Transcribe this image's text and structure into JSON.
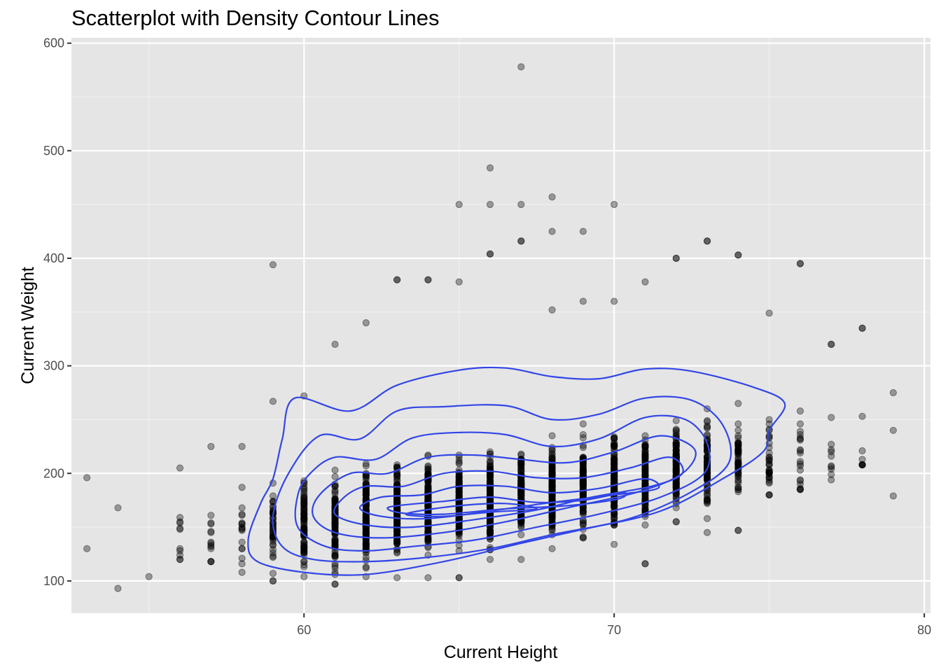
{
  "chart_data": {
    "type": "scatter",
    "title": "Scatterplot with Density Contour Lines",
    "xlabel": "Current Height",
    "ylabel": "Current Weight",
    "xlim": [
      52.5,
      80.2
    ],
    "ylim": [
      70,
      605
    ],
    "x_ticks": [
      60,
      70,
      80
    ],
    "y_ticks": [
      100,
      200,
      300,
      400,
      500,
      600
    ],
    "grid": true,
    "legend": "none",
    "point_color": "#000000",
    "point_opacity": 0.35,
    "contour_color": "#3246e6",
    "panel_background": "#e5e5e5",
    "outlier_points": [
      {
        "x": 53,
        "y": 196
      },
      {
        "x": 53,
        "y": 130
      },
      {
        "x": 54,
        "y": 168
      },
      {
        "x": 54,
        "y": 93
      },
      {
        "x": 55,
        "y": 104
      },
      {
        "x": 59,
        "y": 394
      },
      {
        "x": 67,
        "y": 578
      },
      {
        "x": 66,
        "y": 484
      },
      {
        "x": 65,
        "y": 450
      },
      {
        "x": 66,
        "y": 450
      },
      {
        "x": 67,
        "y": 450
      },
      {
        "x": 68,
        "y": 457
      },
      {
        "x": 70,
        "y": 450
      },
      {
        "x": 67,
        "y": 416
      },
      {
        "x": 68,
        "y": 425
      },
      {
        "x": 69,
        "y": 425
      },
      {
        "x": 73,
        "y": 416
      },
      {
        "x": 74,
        "y": 403
      },
      {
        "x": 72,
        "y": 400
      },
      {
        "x": 76,
        "y": 395
      },
      {
        "x": 66,
        "y": 404
      },
      {
        "x": 64,
        "y": 380
      },
      {
        "x": 63,
        "y": 380
      },
      {
        "x": 79,
        "y": 275
      },
      {
        "x": 79,
        "y": 240
      },
      {
        "x": 79,
        "y": 179
      },
      {
        "x": 78,
        "y": 335
      },
      {
        "x": 77,
        "y": 320
      },
      {
        "x": 71,
        "y": 116
      },
      {
        "x": 74,
        "y": 147
      },
      {
        "x": 61,
        "y": 97
      },
      {
        "x": 65,
        "y": 103
      }
    ],
    "columns": [
      {
        "x": 56,
        "ymin": 120,
        "ymax": 205,
        "n": 9
      },
      {
        "x": 57,
        "ymin": 118,
        "ymax": 225,
        "n": 12
      },
      {
        "x": 58,
        "ymin": 108,
        "ymax": 225,
        "n": 16
      },
      {
        "x": 59,
        "ymin": 100,
        "ymax": 267,
        "n": 45
      },
      {
        "x": 60,
        "ymin": 104,
        "ymax": 272,
        "n": 85
      },
      {
        "x": 61,
        "ymin": 97,
        "ymax": 320,
        "n": 110
      },
      {
        "x": 62,
        "ymin": 104,
        "ymax": 340,
        "n": 150
      },
      {
        "x": 63,
        "ymin": 103,
        "ymax": 380,
        "n": 170
      },
      {
        "x": 64,
        "ymin": 103,
        "ymax": 380,
        "n": 190
      },
      {
        "x": 65,
        "ymin": 103,
        "ymax": 378,
        "n": 140
      },
      {
        "x": 66,
        "ymin": 120,
        "ymax": 404,
        "n": 200
      },
      {
        "x": 67,
        "ymin": 120,
        "ymax": 416,
        "n": 140
      },
      {
        "x": 68,
        "ymin": 130,
        "ymax": 352,
        "n": 150
      },
      {
        "x": 69,
        "ymin": 140,
        "ymax": 360,
        "n": 120
      },
      {
        "x": 70,
        "ymin": 134,
        "ymax": 360,
        "n": 150
      },
      {
        "x": 71,
        "ymin": 116,
        "ymax": 378,
        "n": 110
      },
      {
        "x": 72,
        "ymin": 155,
        "ymax": 400,
        "n": 120
      },
      {
        "x": 73,
        "ymin": 145,
        "ymax": 416,
        "n": 90
      },
      {
        "x": 74,
        "ymin": 147,
        "ymax": 403,
        "n": 60
      },
      {
        "x": 75,
        "ymin": 180,
        "ymax": 349,
        "n": 35
      },
      {
        "x": 76,
        "ymin": 185,
        "ymax": 395,
        "n": 20
      },
      {
        "x": 77,
        "ymin": 194,
        "ymax": 320,
        "n": 9
      },
      {
        "x": 78,
        "ymin": 208,
        "ymax": 335,
        "n": 7
      }
    ],
    "contours": [
      [
        [
          59.7,
          270
        ],
        [
          61.5,
          258
        ],
        [
          63,
          282
        ],
        [
          65,
          296
        ],
        [
          66.5,
          298
        ],
        [
          68,
          290
        ],
        [
          69.5,
          288
        ],
        [
          71,
          297
        ],
        [
          72.5,
          295
        ],
        [
          74.5,
          280
        ],
        [
          75.5,
          265
        ],
        [
          75,
          240
        ],
        [
          74.8,
          220
        ],
        [
          73.5,
          195
        ],
        [
          71.5,
          165
        ],
        [
          69,
          148
        ],
        [
          67,
          135
        ],
        [
          64.5,
          118
        ],
        [
          62,
          106
        ],
        [
          60,
          108
        ],
        [
          58.5,
          118
        ],
        [
          58.2,
          138
        ],
        [
          58.6,
          172
        ],
        [
          59,
          195
        ],
        [
          59.3,
          232
        ]
      ],
      [
        [
          60.5,
          235
        ],
        [
          61.8,
          232
        ],
        [
          63,
          258
        ],
        [
          64.5,
          262
        ],
        [
          66.5,
          263
        ],
        [
          68,
          250
        ],
        [
          69.5,
          255
        ],
        [
          71,
          270
        ],
        [
          72.5,
          268
        ],
        [
          73.5,
          245
        ],
        [
          73.7,
          210
        ],
        [
          72.5,
          183
        ],
        [
          70.5,
          158
        ],
        [
          68,
          143
        ],
        [
          66,
          130
        ],
        [
          64,
          122
        ],
        [
          62,
          118
        ],
        [
          60.3,
          120
        ],
        [
          59.3,
          132
        ],
        [
          59,
          160
        ],
        [
          59.5,
          200
        ]
      ],
      [
        [
          61,
          215
        ],
        [
          62.3,
          213
        ],
        [
          63.5,
          233
        ],
        [
          65,
          238
        ],
        [
          66.5,
          236
        ],
        [
          68,
          225
        ],
        [
          69.5,
          232
        ],
        [
          71,
          252
        ],
        [
          72.3,
          250
        ],
        [
          73,
          228
        ],
        [
          72.9,
          200
        ],
        [
          71.5,
          178
        ],
        [
          69.5,
          162
        ],
        [
          67.5,
          150
        ],
        [
          65.5,
          138
        ],
        [
          63.5,
          132
        ],
        [
          62,
          128
        ],
        [
          60.7,
          132
        ],
        [
          59.8,
          150
        ],
        [
          59.8,
          180
        ],
        [
          60.2,
          200
        ]
      ],
      [
        [
          61.5,
          200
        ],
        [
          62.7,
          200
        ],
        [
          64,
          215
        ],
        [
          65.5,
          217
        ],
        [
          67,
          213
        ],
        [
          68.5,
          210
        ],
        [
          70,
          220
        ],
        [
          71.5,
          235
        ],
        [
          72.6,
          222
        ],
        [
          72.2,
          200
        ],
        [
          70.8,
          183
        ],
        [
          68.5,
          168
        ],
        [
          66.5,
          155
        ],
        [
          64.5,
          145
        ],
        [
          62.5,
          140
        ],
        [
          61,
          145
        ],
        [
          60.3,
          160
        ],
        [
          60.5,
          180
        ]
      ],
      [
        [
          62,
          188
        ],
        [
          63.2,
          188
        ],
        [
          64.5,
          200
        ],
        [
          66,
          202
        ],
        [
          67.5,
          196
        ],
        [
          69,
          196
        ],
        [
          70.5,
          205
        ],
        [
          71.8,
          215
        ],
        [
          72.2,
          200
        ],
        [
          71.2,
          188
        ],
        [
          69.3,
          178
        ],
        [
          67.5,
          166
        ],
        [
          65.5,
          157
        ],
        [
          63.5,
          150
        ],
        [
          62,
          152
        ],
        [
          61,
          162
        ],
        [
          61.3,
          178
        ]
      ],
      [
        [
          62.5,
          178
        ],
        [
          63.8,
          180
        ],
        [
          65,
          188
        ],
        [
          66.5,
          188
        ],
        [
          68,
          182
        ],
        [
          69.5,
          186
        ],
        [
          71,
          195
        ],
        [
          71.4,
          186
        ],
        [
          70,
          180
        ],
        [
          68,
          173
        ],
        [
          66,
          165
        ],
        [
          64,
          158
        ],
        [
          62.5,
          160
        ],
        [
          61.8,
          168
        ]
      ],
      [
        [
          63,
          170
        ],
        [
          64.5,
          174
        ],
        [
          66,
          178
        ],
        [
          67.5,
          173
        ],
        [
          69,
          175
        ],
        [
          70.3,
          182
        ],
        [
          70.1,
          176
        ],
        [
          68.5,
          170
        ],
        [
          66.5,
          167
        ],
        [
          64.5,
          162
        ],
        [
          63.2,
          163
        ],
        [
          62.7,
          167
        ]
      ],
      [
        [
          63.5,
          164
        ],
        [
          65,
          170
        ],
        [
          66.5,
          172
        ],
        [
          67.5,
          167
        ],
        [
          66,
          164
        ],
        [
          64.5,
          160
        ],
        [
          63.4,
          161
        ]
      ]
    ]
  }
}
